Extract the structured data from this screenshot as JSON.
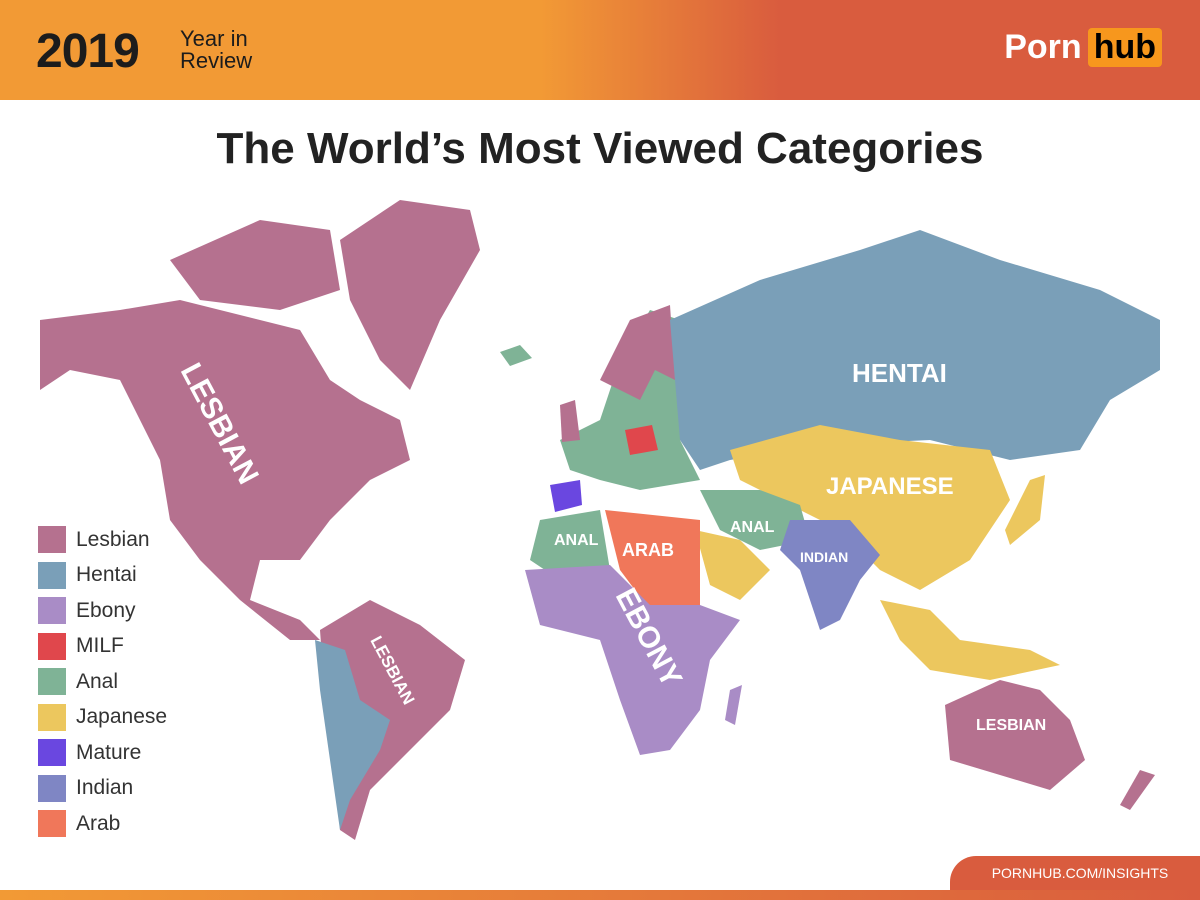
{
  "header": {
    "year": "2019",
    "subtitle": "Year in Review",
    "logo_left": "Porn",
    "logo_right": "hub"
  },
  "title": "The World’s Most Viewed Categories",
  "colors": {
    "Lesbian": "#b5718f",
    "Hentai": "#7a9fb8",
    "Ebony": "#a98cc6",
    "MILF": "#e0474c",
    "Anal": "#7fb396",
    "Japanese": "#ecc75e",
    "Mature": "#6a47e0",
    "Indian": "#7f86c4",
    "Arab": "#f0775a"
  },
  "legend": [
    {
      "label": "Lesbian",
      "color": "#b5718f"
    },
    {
      "label": "Hentai",
      "color": "#7a9fb8"
    },
    {
      "label": "Ebony",
      "color": "#a98cc6"
    },
    {
      "label": "MILF",
      "color": "#e0474c"
    },
    {
      "label": "Anal",
      "color": "#7fb396"
    },
    {
      "label": "Japanese",
      "color": "#ecc75e"
    },
    {
      "label": "Mature",
      "color": "#6a47e0"
    },
    {
      "label": "Indian",
      "color": "#7f86c4"
    },
    {
      "label": "Arab",
      "color": "#f0775a"
    }
  ],
  "map_labels": {
    "north_america": "LESBIAN",
    "south_america": "LESBIAN",
    "russia": "HENTAI",
    "asia": "JAPANESE",
    "north_africa": "ANAL",
    "middle_east": "ARAB",
    "central_asia": "ANAL",
    "india": "INDIAN",
    "africa": "EBONY",
    "australia": "LESBIAN"
  },
  "footer": "PORNHUB.COM/INSIGHTS"
}
